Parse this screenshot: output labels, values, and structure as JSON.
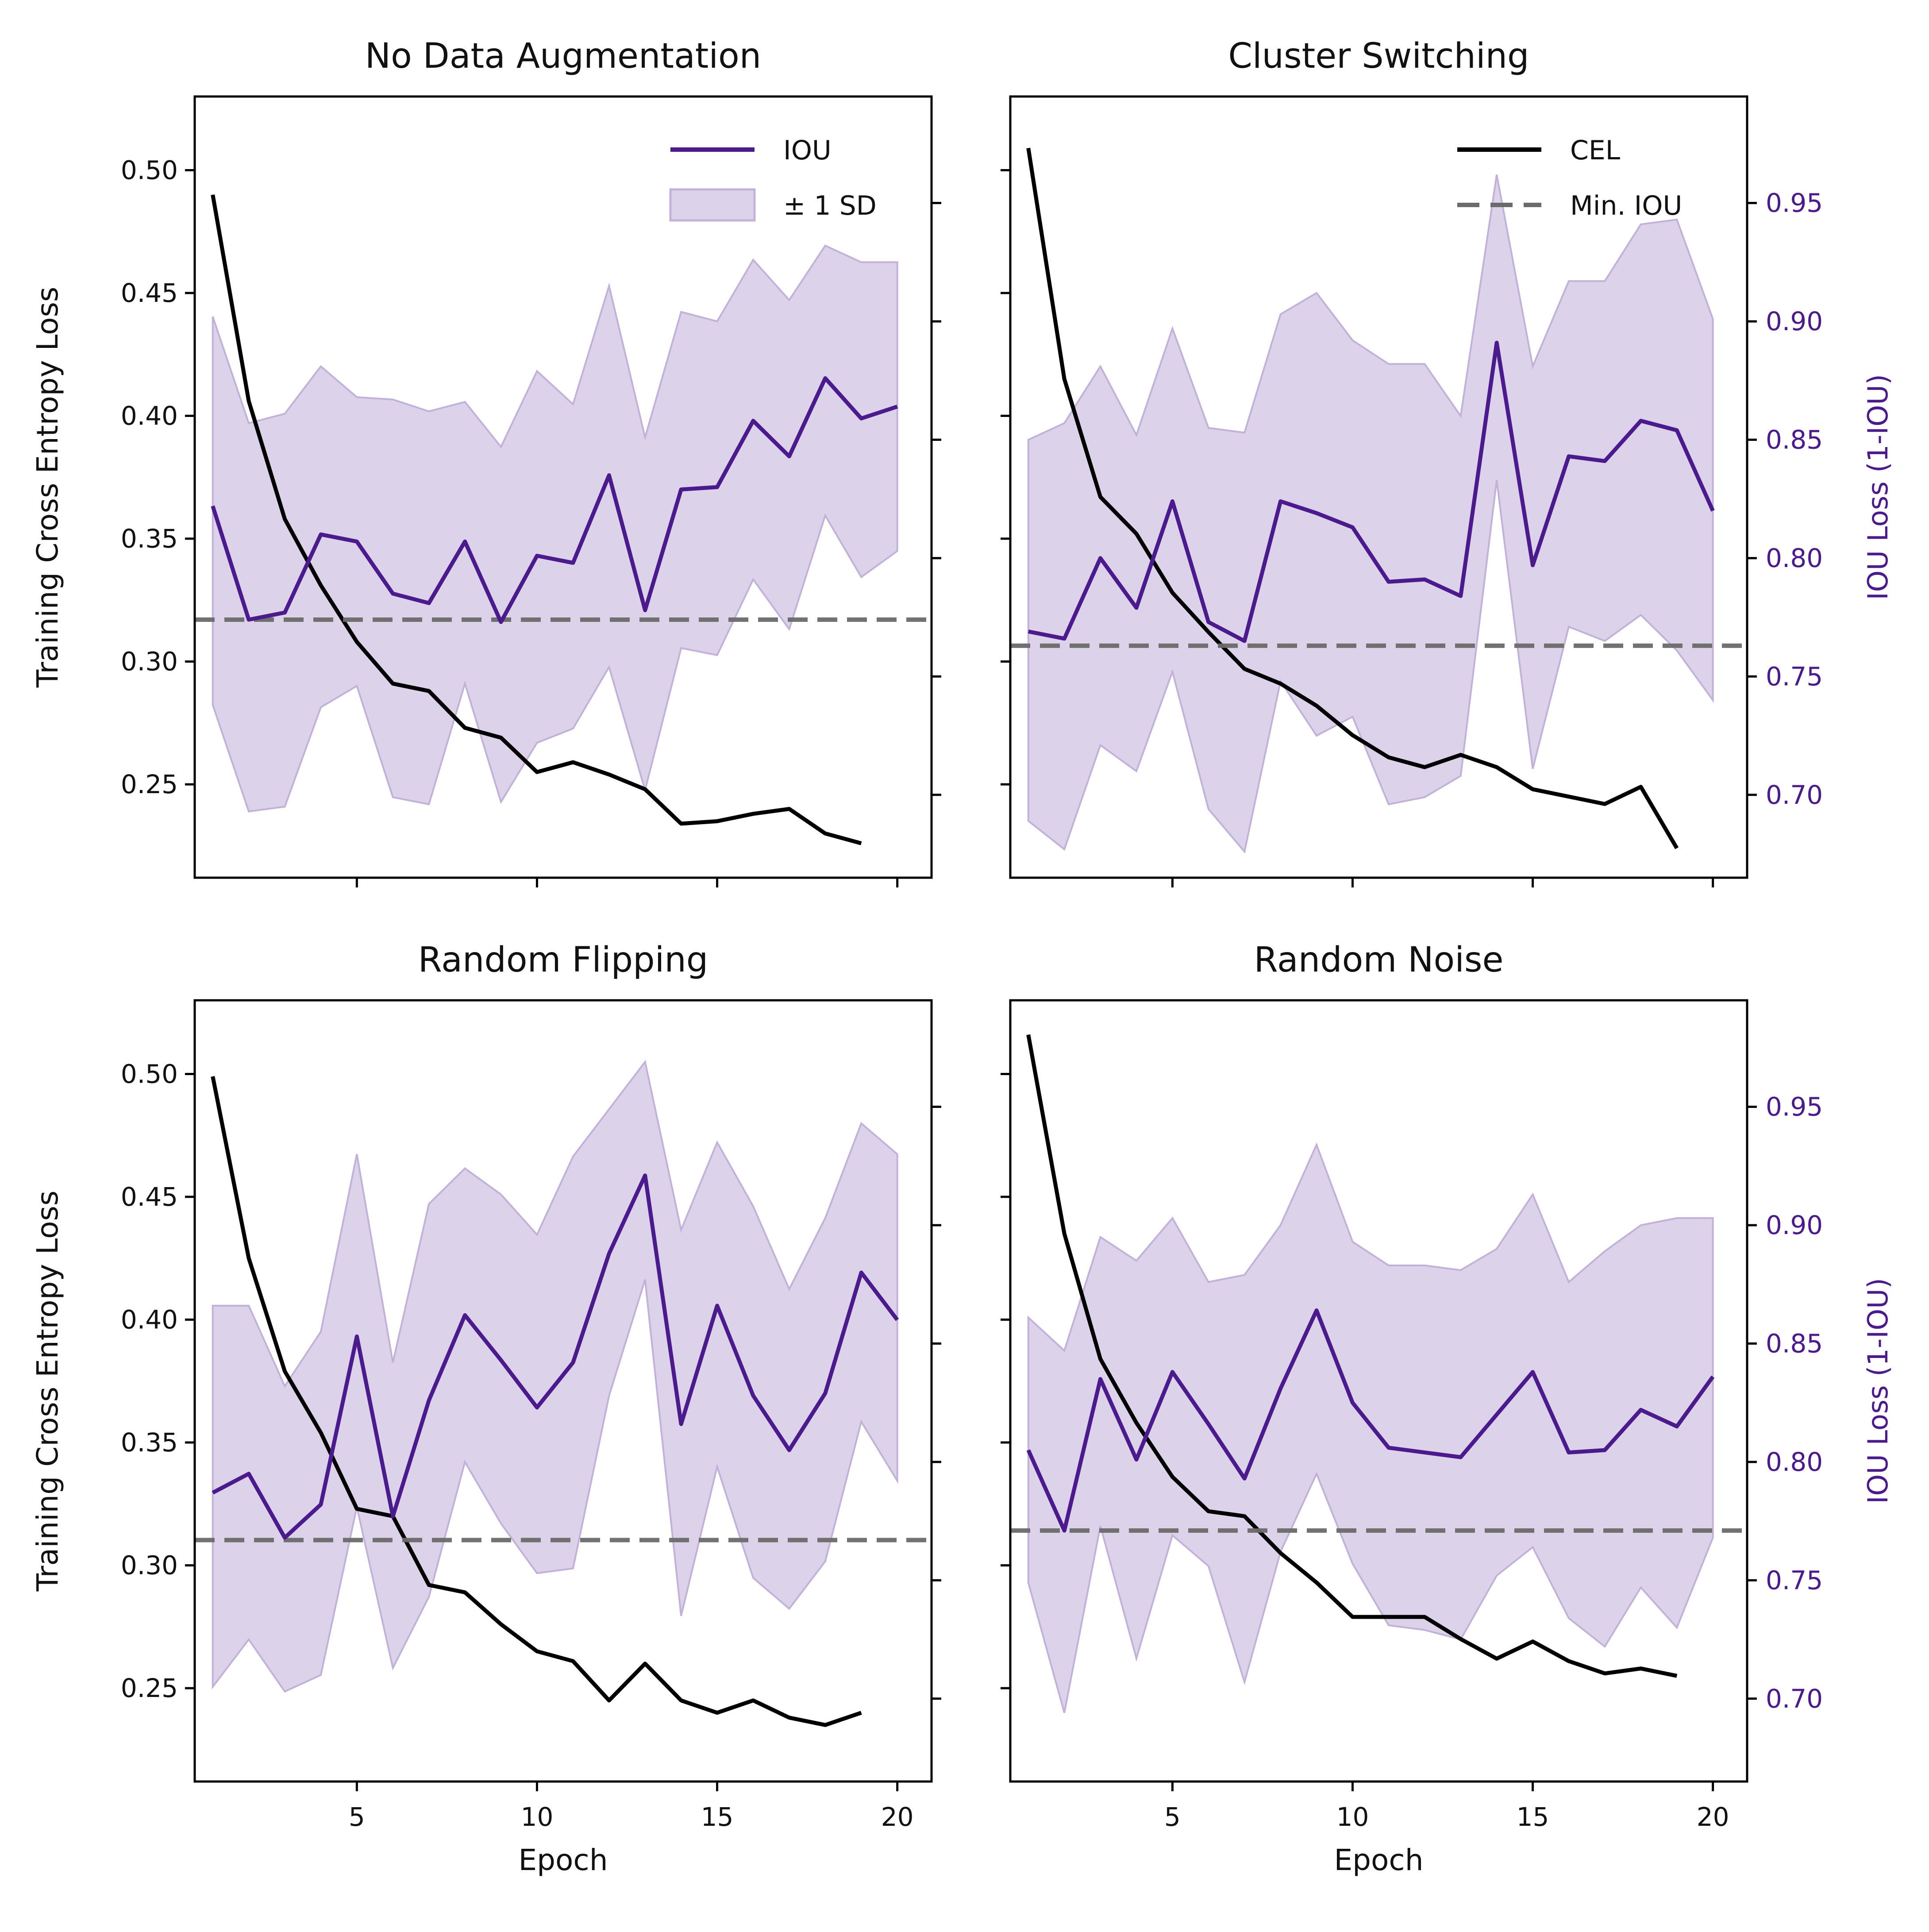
{
  "chart_data": [
    {
      "type": "line",
      "title": "No Data Augmentation",
      "xlabel": "",
      "ylabel": "Training Cross Entropy Loss",
      "ylabel_right": "",
      "x": [
        1,
        2,
        3,
        4,
        5,
        6,
        7,
        8,
        9,
        10,
        11,
        12,
        13,
        14,
        15,
        16,
        17,
        18,
        19,
        20
      ],
      "xlim": [
        0.5,
        20.95
      ],
      "xticks": [
        5,
        10,
        15,
        20
      ],
      "show_xtick_labels": false,
      "ylim": [
        0.212,
        0.53
      ],
      "yticks": [
        0.25,
        0.3,
        0.35,
        0.4,
        0.45,
        0.5
      ],
      "ytick_labels": [
        "0.25",
        "0.30",
        "0.35",
        "0.40",
        "0.45",
        "0.50"
      ],
      "y2lim": [
        0.665,
        0.995
      ],
      "y2ticks": [
        0.7,
        0.75,
        0.8,
        0.85,
        0.9,
        0.95
      ],
      "y2tick_labels": [],
      "cel": [
        0.49,
        0.406,
        0.358,
        0.331,
        0.308,
        0.291,
        0.288,
        0.273,
        0.269,
        0.255,
        0.259,
        0.254,
        0.248,
        0.234,
        0.235,
        0.238,
        0.24,
        0.23,
        0.226
      ],
      "iou": [
        0.822,
        0.774,
        0.777,
        0.81,
        0.807,
        0.785,
        0.781,
        0.807,
        0.773,
        0.801,
        0.798,
        0.835,
        0.778,
        0.829,
        0.83,
        0.858,
        0.843,
        0.876,
        0.859,
        0.864
      ],
      "iou_upper": [
        0.902,
        0.857,
        0.861,
        0.881,
        0.868,
        0.867,
        0.862,
        0.866,
        0.847,
        0.879,
        0.865,
        0.915,
        0.851,
        0.904,
        0.9,
        0.926,
        0.909,
        0.932,
        0.925,
        0.925
      ],
      "iou_lower": [
        0.738,
        0.693,
        0.695,
        0.737,
        0.746,
        0.699,
        0.696,
        0.747,
        0.697,
        0.722,
        0.728,
        0.754,
        0.702,
        0.762,
        0.759,
        0.791,
        0.77,
        0.818,
        0.792,
        0.803
      ],
      "min_iou": 0.774,
      "legend": [
        "IOU",
        "± 1 SD"
      ],
      "legend_position": "upper-right"
    },
    {
      "type": "line",
      "title": "Cluster Switching",
      "xlabel": "",
      "ylabel": "",
      "ylabel_right": "IOU Loss (1-IOU)",
      "x": [
        1,
        2,
        3,
        4,
        5,
        6,
        7,
        8,
        9,
        10,
        11,
        12,
        13,
        14,
        15,
        16,
        17,
        18,
        19,
        20
      ],
      "xlim": [
        0.5,
        20.95
      ],
      "xticks": [
        5,
        10,
        15,
        20
      ],
      "show_xtick_labels": false,
      "ylim": [
        0.212,
        0.53
      ],
      "yticks": [
        0.25,
        0.3,
        0.35,
        0.4,
        0.45,
        0.5
      ],
      "ytick_labels": [],
      "y2lim": [
        0.665,
        0.995
      ],
      "y2ticks": [
        0.7,
        0.75,
        0.8,
        0.85,
        0.9,
        0.95
      ],
      "y2tick_labels": [
        "0.70",
        "0.75",
        "0.80",
        "0.85",
        "0.90",
        "0.95"
      ],
      "cel": [
        0.509,
        0.415,
        0.367,
        0.352,
        0.328,
        0.312,
        0.297,
        0.291,
        0.282,
        0.27,
        0.261,
        0.257,
        0.262,
        0.257,
        0.248,
        0.245,
        0.242,
        0.249,
        0.224
      ],
      "iou": [
        0.769,
        0.766,
        0.8,
        0.779,
        0.824,
        0.773,
        0.765,
        0.824,
        0.819,
        0.813,
        0.79,
        0.791,
        0.784,
        0.891,
        0.797,
        0.843,
        0.841,
        0.858,
        0.854,
        0.82
      ],
      "iou_upper": [
        0.85,
        0.857,
        0.881,
        0.852,
        0.897,
        0.855,
        0.853,
        0.903,
        0.912,
        0.892,
        0.882,
        0.882,
        0.86,
        0.962,
        0.881,
        0.917,
        0.917,
        0.941,
        0.943,
        0.901
      ],
      "iou_lower": [
        0.689,
        0.677,
        0.721,
        0.71,
        0.752,
        0.694,
        0.676,
        0.748,
        0.725,
        0.733,
        0.696,
        0.699,
        0.708,
        0.833,
        0.711,
        0.771,
        0.765,
        0.776,
        0.761,
        0.74
      ],
      "min_iou": 0.763,
      "legend": [
        "CEL",
        "Min. IOU"
      ],
      "legend_position": "upper-right"
    },
    {
      "type": "line",
      "title": "Random Flipping",
      "xlabel": "Epoch",
      "ylabel": "Training Cross Entropy Loss",
      "ylabel_right": "",
      "x": [
        1,
        2,
        3,
        4,
        5,
        6,
        7,
        8,
        9,
        10,
        11,
        12,
        13,
        14,
        15,
        16,
        17,
        18,
        19,
        20
      ],
      "xlim": [
        0.5,
        20.95
      ],
      "xticks": [
        5,
        10,
        15,
        20
      ],
      "show_xtick_labels": true,
      "xtick_labels": [
        "5",
        "10",
        "15",
        "20"
      ],
      "ylim": [
        0.212,
        0.53
      ],
      "yticks": [
        0.25,
        0.3,
        0.35,
        0.4,
        0.45,
        0.5
      ],
      "ytick_labels": [
        "0.25",
        "0.30",
        "0.35",
        "0.40",
        "0.45",
        "0.50"
      ],
      "y2lim": [
        0.665,
        0.995
      ],
      "y2ticks": [
        0.7,
        0.75,
        0.8,
        0.85,
        0.9,
        0.95
      ],
      "y2tick_labels": [],
      "cel": [
        0.499,
        0.425,
        0.379,
        0.354,
        0.323,
        0.32,
        0.292,
        0.289,
        0.276,
        0.265,
        0.261,
        0.245,
        0.26,
        0.245,
        0.24,
        0.245,
        0.238,
        0.235,
        0.24
      ],
      "iou": [
        0.787,
        0.795,
        0.768,
        0.782,
        0.853,
        0.777,
        0.826,
        0.862,
        0.843,
        0.823,
        0.842,
        0.888,
        0.921,
        0.816,
        0.866,
        0.828,
        0.805,
        0.829,
        0.88,
        0.86
      ],
      "iou_upper": [
        0.866,
        0.866,
        0.832,
        0.855,
        0.93,
        0.842,
        0.909,
        0.924,
        0.913,
        0.896,
        0.929,
        0.949,
        0.969,
        0.898,
        0.935,
        0.908,
        0.873,
        0.903,
        0.943,
        0.93
      ],
      "iou_lower": [
        0.705,
        0.725,
        0.703,
        0.71,
        0.781,
        0.713,
        0.743,
        0.8,
        0.774,
        0.753,
        0.755,
        0.828,
        0.877,
        0.735,
        0.798,
        0.751,
        0.738,
        0.758,
        0.817,
        0.792
      ],
      "min_iou": 0.767
    },
    {
      "type": "line",
      "title": "Random Noise",
      "xlabel": "Epoch",
      "ylabel": "",
      "ylabel_right": "IOU Loss (1-IOU)",
      "x": [
        1,
        2,
        3,
        4,
        5,
        6,
        7,
        8,
        9,
        10,
        11,
        12,
        13,
        14,
        15,
        16,
        17,
        18,
        19,
        20
      ],
      "xlim": [
        0.5,
        20.95
      ],
      "xticks": [
        5,
        10,
        15,
        20
      ],
      "show_xtick_labels": true,
      "xtick_labels": [
        "5",
        "10",
        "15",
        "20"
      ],
      "ylim": [
        0.212,
        0.53
      ],
      "yticks": [
        0.25,
        0.3,
        0.35,
        0.4,
        0.45,
        0.5
      ],
      "ytick_labels": [],
      "y2lim": [
        0.665,
        0.995
      ],
      "y2ticks": [
        0.7,
        0.75,
        0.8,
        0.85,
        0.9,
        0.95
      ],
      "y2tick_labels": [
        "0.70",
        "0.75",
        "0.80",
        "0.85",
        "0.90",
        "0.95"
      ],
      "cel": [
        0.516,
        0.435,
        0.384,
        0.358,
        0.336,
        0.322,
        0.32,
        0.305,
        0.293,
        0.279,
        0.279,
        0.279,
        0.27,
        0.262,
        0.269,
        0.261,
        0.256,
        0.258,
        0.255
      ],
      "iou": [
        0.805,
        0.771,
        0.835,
        0.801,
        0.838,
        0.816,
        0.793,
        0.831,
        0.864,
        0.825,
        0.806,
        0.804,
        0.802,
        0.82,
        0.838,
        0.804,
        0.805,
        0.822,
        0.815,
        0.836
      ],
      "iou_upper": [
        0.861,
        0.847,
        0.895,
        0.885,
        0.903,
        0.876,
        0.879,
        0.9,
        0.934,
        0.893,
        0.883,
        0.883,
        0.881,
        0.89,
        0.913,
        0.876,
        0.889,
        0.9,
        0.903,
        0.903
      ],
      "iou_lower": [
        0.749,
        0.694,
        0.773,
        0.717,
        0.769,
        0.756,
        0.707,
        0.762,
        0.795,
        0.757,
        0.731,
        0.729,
        0.725,
        0.752,
        0.764,
        0.734,
        0.722,
        0.747,
        0.73,
        0.768
      ],
      "min_iou": 0.771
    }
  ],
  "colors": {
    "cel": "#000000",
    "iou": "#4b1a8c",
    "band": "#dcd2e9",
    "band_edge": "#c2b1d9",
    "min_iou": "#6b6b6b",
    "right_axis_text": "#4b1a8c"
  }
}
